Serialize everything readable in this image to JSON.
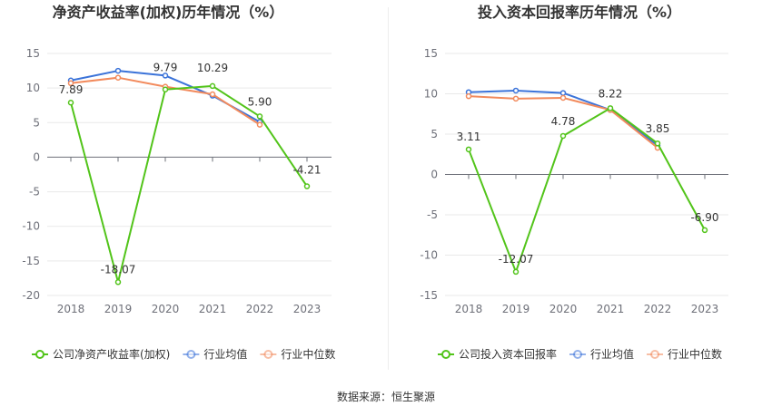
{
  "chart_data": [
    {
      "type": "line",
      "title": "净资产收益率(加权)历年情况（%）",
      "categories": [
        "2018",
        "2019",
        "2020",
        "2021",
        "2022",
        "2023"
      ],
      "y_ticks": [
        15,
        10,
        5,
        0,
        -5,
        -10,
        -15,
        -20
      ],
      "ylim": [
        -20,
        15
      ],
      "grid": true,
      "legend_position": "bottom",
      "series": [
        {
          "name": "公司净资产收益率(加权)",
          "color": "#52c41a",
          "values": [
            7.89,
            -18.07,
            9.79,
            10.29,
            5.9,
            -4.21
          ],
          "labels": [
            "7.89",
            "-18.07",
            "9.79",
            "10.29",
            "5.90",
            "-4.21"
          ]
        },
        {
          "name": "行业均值",
          "color": "#3b73d9",
          "values": [
            11.1,
            12.5,
            11.8,
            8.9,
            5.1,
            null
          ]
        },
        {
          "name": "行业中位数",
          "color": "#f28a5c",
          "values": [
            10.7,
            11.5,
            10.2,
            9.1,
            4.7,
            null
          ]
        }
      ]
    },
    {
      "type": "line",
      "title": "投入资本回报率历年情况（%）",
      "categories": [
        "2018",
        "2019",
        "2020",
        "2021",
        "2022",
        "2023"
      ],
      "y_ticks": [
        15,
        10,
        5,
        0,
        -5,
        -10,
        -15
      ],
      "ylim": [
        -15,
        15
      ],
      "grid": true,
      "legend_position": "bottom",
      "series": [
        {
          "name": "公司投入资本回报率",
          "color": "#52c41a",
          "values": [
            3.11,
            -12.07,
            4.78,
            8.22,
            3.85,
            -6.9
          ],
          "labels": [
            "3.11",
            "-12.07",
            "4.78",
            "8.22",
            "3.85",
            "-6.90"
          ]
        },
        {
          "name": "行业均值",
          "color": "#3b73d9",
          "values": [
            10.2,
            10.4,
            10.1,
            8.0,
            3.6,
            null
          ]
        },
        {
          "name": "行业中位数",
          "color": "#f28a5c",
          "values": [
            9.7,
            9.4,
            9.5,
            8.0,
            3.3,
            null
          ]
        }
      ]
    }
  ],
  "footer": {
    "source": "数据来源：恒生聚源"
  }
}
